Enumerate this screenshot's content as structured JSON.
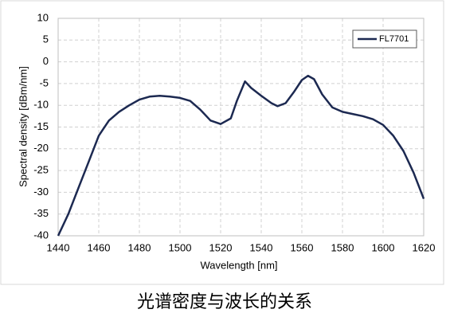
{
  "chart_data": {
    "type": "line",
    "x_label": "Wavelength [nm]",
    "y_label": "Spectral density [dBm/nm]",
    "x": [
      1440,
      1445,
      1450,
      1455,
      1460,
      1465,
      1470,
      1475,
      1480,
      1485,
      1490,
      1495,
      1500,
      1505,
      1510,
      1515,
      1520,
      1525,
      1528,
      1532,
      1535,
      1540,
      1545,
      1548,
      1552,
      1556,
      1560,
      1563,
      1566,
      1570,
      1575,
      1580,
      1585,
      1590,
      1595,
      1600,
      1605,
      1610,
      1615,
      1620
    ],
    "series": [
      {
        "name": "FL7701",
        "color": "#1c2951",
        "values": [
          -40,
          -35,
          -29,
          -23,
          -17,
          -13.5,
          -11.5,
          -10,
          -8.7,
          -8,
          -7.8,
          -8,
          -8.3,
          -9,
          -11,
          -13.5,
          -14.3,
          -13,
          -9,
          -4.5,
          -6,
          -7.8,
          -9.5,
          -10.2,
          -9.5,
          -7,
          -4.2,
          -3.2,
          -4,
          -7.5,
          -10.5,
          -11.5,
          -12,
          -12.5,
          -13.2,
          -14.5,
          -17,
          -20.5,
          -25.5,
          -31.5
        ]
      }
    ],
    "xlim": [
      1440,
      1620
    ],
    "xticks": [
      1440,
      1460,
      1480,
      1500,
      1520,
      1540,
      1560,
      1580,
      1600,
      1620
    ],
    "ylim": [
      -40,
      10
    ],
    "yticks": [
      -40,
      -35,
      -30,
      -25,
      -20,
      -15,
      -10,
      -5,
      0,
      5,
      10
    ],
    "grid": true,
    "legend": "upper right"
  },
  "caption": "光谱密度与波长的关系"
}
